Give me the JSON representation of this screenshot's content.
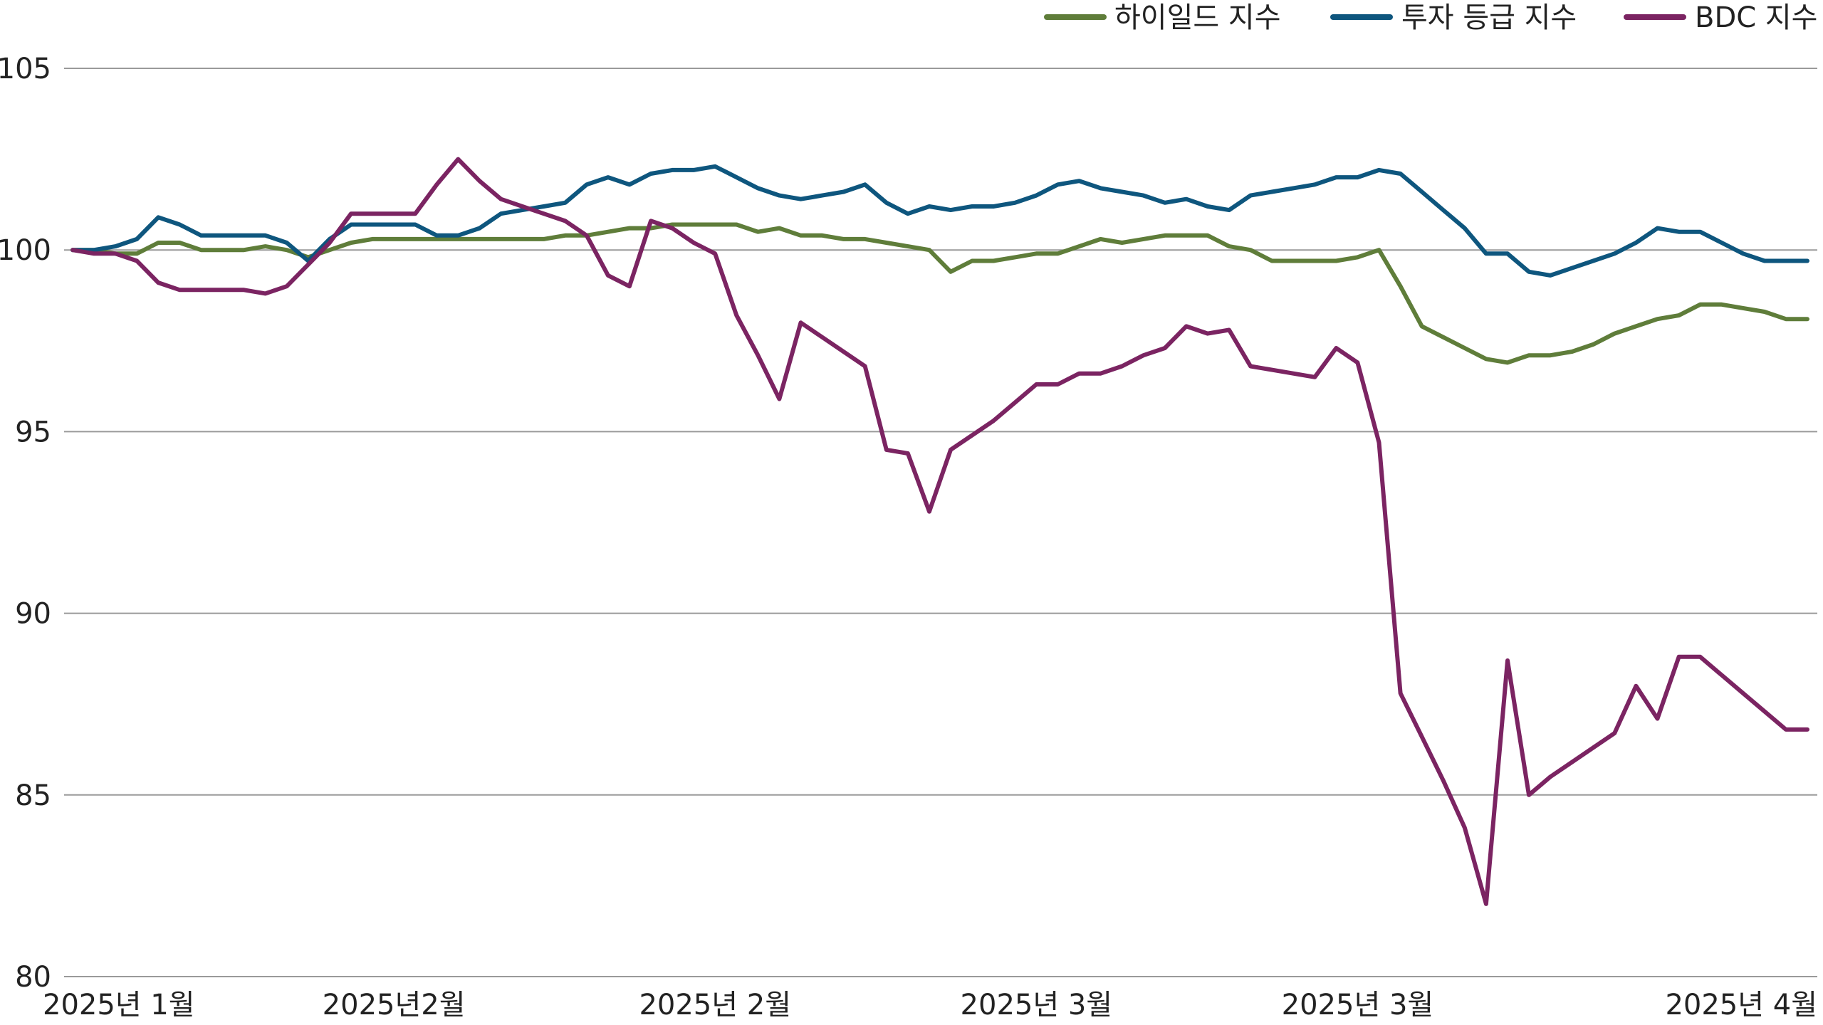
{
  "chart_data": {
    "type": "line",
    "title": "",
    "xlabel": "",
    "ylabel": "",
    "ylim": [
      80,
      105
    ],
    "yticks": [
      80,
      85,
      90,
      95,
      100,
      105
    ],
    "grid": true,
    "legend_position": "top-right",
    "x_tick_labels": [
      "2025년 1월",
      "2025년2월",
      "2025년 2월",
      "2025년 3월",
      "2025년 3월",
      "2025년 4월"
    ],
    "x_tick_index": [
      0,
      15,
      30,
      45,
      60,
      75
    ],
    "num_points": 82,
    "series": [
      {
        "name": "하이일드 지수",
        "color": "#5f7d3a",
        "values": [
          100,
          100,
          99.9,
          99.9,
          100.2,
          100.2,
          100,
          100,
          100,
          100.1,
          100,
          99.8,
          100,
          100.2,
          100.3,
          100.3,
          100.3,
          100.3,
          100.3,
          100.3,
          100.3,
          100.3,
          100.3,
          100.4,
          100.4,
          100.5,
          100.6,
          100.6,
          100.7,
          100.7,
          100.7,
          100.7,
          100.5,
          100.6,
          100.4,
          100.4,
          100.3,
          100.3,
          100.2,
          100.1,
          100,
          99.4,
          99.7,
          99.7,
          99.8,
          99.9,
          99.9,
          100.1,
          100.3,
          100.2,
          100.3,
          100.4,
          100.4,
          100.4,
          100.1,
          100,
          99.7,
          99.7,
          99.7,
          99.7,
          99.8,
          100,
          99,
          97.9,
          97.6,
          97.3,
          97,
          96.9,
          97.1,
          97.1,
          97.2,
          97.4,
          97.7,
          97.9,
          98.1,
          98.2,
          98.5,
          98.5,
          98.4,
          98.3,
          98.1,
          98.1
        ]
      },
      {
        "name": "투자 등급 지수",
        "color": "#0e567e",
        "values": [
          100,
          100,
          100.1,
          100.3,
          100.9,
          100.7,
          100.4,
          100.4,
          100.4,
          100.4,
          100.2,
          99.7,
          100.3,
          100.7,
          100.7,
          100.7,
          100.7,
          100.4,
          100.4,
          100.6,
          101,
          101.1,
          101.2,
          101.3,
          101.8,
          102,
          101.8,
          102.1,
          102.2,
          102.2,
          102.3,
          102,
          101.7,
          101.5,
          101.4,
          101.5,
          101.6,
          101.8,
          101.3,
          101,
          101.2,
          101.1,
          101.2,
          101.2,
          101.3,
          101.5,
          101.8,
          101.9,
          101.7,
          101.6,
          101.5,
          101.3,
          101.4,
          101.2,
          101.1,
          101.5,
          101.6,
          101.7,
          101.8,
          102,
          102,
          102.2,
          102.1,
          101.6,
          101.1,
          100.6,
          99.9,
          99.9,
          99.4,
          99.3,
          99.5,
          99.7,
          99.9,
          100.2,
          100.6,
          100.5,
          100.5,
          100.2,
          99.9,
          99.7,
          99.7,
          99.7
        ]
      },
      {
        "name": "BDC 지수",
        "color": "#7b2462",
        "values": [
          100,
          99.9,
          99.9,
          99.7,
          99.1,
          98.9,
          98.9,
          98.9,
          98.9,
          98.8,
          99,
          99.6,
          100.2,
          101,
          101,
          101,
          101,
          101.8,
          102.5,
          101.9,
          101.4,
          101.2,
          101,
          100.8,
          100.4,
          99.3,
          99,
          100.8,
          100.6,
          100.2,
          99.9,
          98.2,
          97.1,
          95.9,
          98,
          97.6,
          97.2,
          96.8,
          94.5,
          94.4,
          92.8,
          94.5,
          94.9,
          95.3,
          95.8,
          96.3,
          96.3,
          96.6,
          96.6,
          96.8,
          97.1,
          97.3,
          97.9,
          97.7,
          97.8,
          96.8,
          96.7,
          96.6,
          96.5,
          97.3,
          96.9,
          94.7,
          87.8,
          86.6,
          85.4,
          84.1,
          82,
          88.7,
          85,
          85.5,
          85.9,
          86.3,
          86.7,
          88,
          87.1,
          88.8,
          88.8,
          88.3,
          87.8,
          87.3,
          86.8,
          86.8
        ]
      }
    ]
  }
}
